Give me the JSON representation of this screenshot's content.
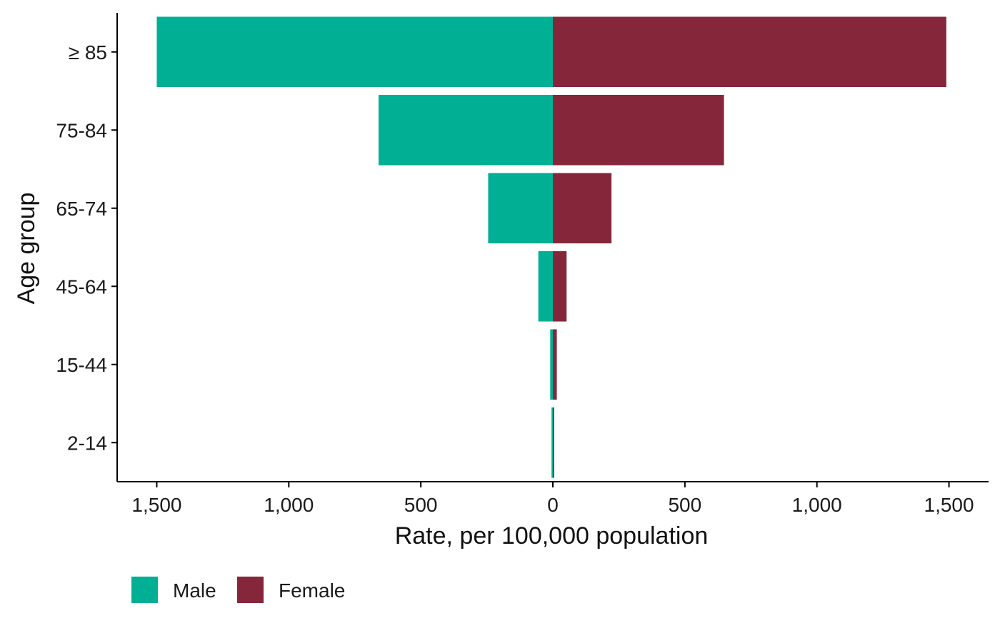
{
  "chart_data": {
    "type": "bar",
    "orientation": "horizontal",
    "subtype": "population-pyramid",
    "categories": [
      "2-14",
      "15-44",
      "45-64",
      "65-74",
      "75-84",
      "≥ 85"
    ],
    "series": [
      {
        "name": "Male",
        "color": "#00AF94",
        "side": "left",
        "values": [
          5,
          10,
          55,
          245,
          660,
          1500
        ]
      },
      {
        "name": "Female",
        "color": "#85263A",
        "side": "right",
        "values": [
          5,
          15,
          52,
          222,
          648,
          1490
        ]
      }
    ],
    "xlabel": "Rate, per 100,000 population",
    "ylabel": "Age group",
    "xlim": [
      -1650,
      1650
    ],
    "xticks": [
      -1500,
      -1000,
      -500,
      0,
      500,
      1000,
      1500
    ],
    "xtick_labels": [
      "1,500",
      "1,000",
      "500",
      "0",
      "500",
      "1,000",
      "1,500"
    ],
    "legend": {
      "position": "bottom-left",
      "entries": [
        "Male",
        "Female"
      ]
    },
    "grid": false
  }
}
